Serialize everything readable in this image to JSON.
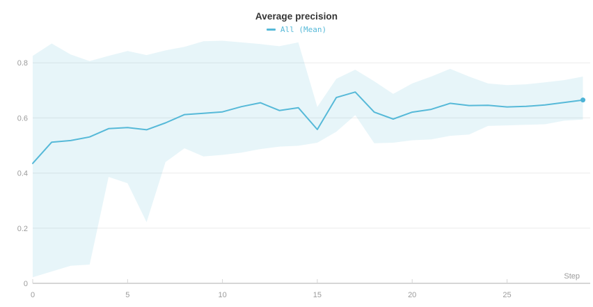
{
  "chart_title": "Average precision",
  "legend": {
    "label": "All (Mean)",
    "color": "#56b9d8"
  },
  "axes": {
    "x_label": "Step",
    "x_ticks": [
      0,
      5,
      10,
      15,
      20,
      25
    ],
    "y_ticks": [
      0,
      0.2,
      0.4,
      0.6,
      0.8
    ]
  },
  "colors": {
    "line": "#56b9d8",
    "band_fill": "#56b9d8",
    "band_opacity": 0.14,
    "end_dot": "#4db3d6",
    "grid": "#ececec",
    "axis": "#d6d6d6",
    "tick_text": "#9b9b9b",
    "title_text": "#333333"
  },
  "chart_data": {
    "type": "line",
    "title": "Average precision",
    "xlabel": "Step",
    "ylabel": "",
    "xlim": [
      0,
      29.5
    ],
    "ylim": [
      0,
      0.9
    ],
    "grid": "horizontal-only",
    "legend_position": "top-center",
    "x": [
      0,
      1,
      2,
      3,
      4,
      5,
      6,
      7,
      8,
      9,
      10,
      11,
      12,
      13,
      14,
      15,
      16,
      17,
      18,
      19,
      20,
      21,
      22,
      23,
      24,
      25,
      26,
      27,
      28,
      29
    ],
    "series": [
      {
        "name": "All (Mean)",
        "role": "mean-line",
        "values": [
          0.435,
          0.512,
          0.518,
          0.531,
          0.561,
          0.565,
          0.557,
          0.582,
          0.612,
          0.617,
          0.622,
          0.641,
          0.655,
          0.627,
          0.637,
          0.558,
          0.674,
          0.694,
          0.621,
          0.596,
          0.621,
          0.631,
          0.653,
          0.645,
          0.646,
          0.64,
          0.642,
          0.647,
          0.656,
          0.665
        ]
      },
      {
        "name": "All (band upper)",
        "role": "band-upper",
        "values": [
          0.825,
          0.87,
          0.83,
          0.806,
          0.825,
          0.843,
          0.828,
          0.845,
          0.858,
          0.878,
          0.88,
          0.874,
          0.868,
          0.86,
          0.874,
          0.64,
          0.742,
          0.775,
          0.733,
          0.687,
          0.725,
          0.75,
          0.778,
          0.75,
          0.725,
          0.719,
          0.722,
          0.729,
          0.737,
          0.75
        ]
      },
      {
        "name": "All (band lower)",
        "role": "band-lower",
        "values": [
          0.022,
          0.043,
          0.064,
          0.068,
          0.386,
          0.363,
          0.222,
          0.44,
          0.49,
          0.46,
          0.466,
          0.474,
          0.487,
          0.496,
          0.499,
          0.51,
          0.55,
          0.61,
          0.508,
          0.51,
          0.519,
          0.522,
          0.535,
          0.54,
          0.571,
          0.573,
          0.575,
          0.577,
          0.59,
          0.594
        ]
      }
    ],
    "end_marker": {
      "x": 29,
      "y": 0.665
    }
  }
}
